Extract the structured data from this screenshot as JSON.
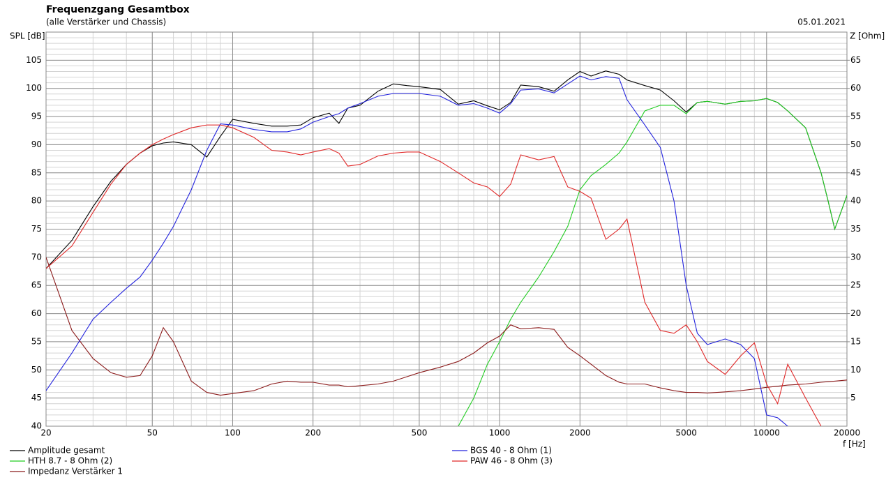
{
  "chart_data": {
    "type": "line",
    "title": "Frequenzgang Gesamtbox",
    "subtitle": "(alle Verstärker und Chassis)",
    "date": "05.01.2021",
    "ylabel": "SPL [dB]",
    "y2label": "Z [Ohm]",
    "xlabel": "f [Hz]",
    "xscale": "log",
    "grid": true,
    "minor_grid": true,
    "xlim": [
      20,
      20000
    ],
    "xticks": [
      20,
      50,
      100,
      200,
      500,
      1000,
      2000,
      5000,
      10000,
      20000
    ],
    "ylim": [
      40,
      110
    ],
    "yticks": [
      40,
      45,
      50,
      55,
      60,
      65,
      70,
      75,
      80,
      85,
      90,
      95,
      100,
      105
    ],
    "y2lim": [
      0,
      70
    ],
    "y2ticks": [
      5,
      10,
      15,
      20,
      25,
      30,
      35,
      40,
      45,
      50,
      55,
      60,
      65
    ],
    "x": [
      20,
      25,
      30,
      35,
      40,
      45,
      50,
      55,
      60,
      70,
      80,
      90,
      100,
      120,
      140,
      160,
      180,
      200,
      230,
      250,
      270,
      300,
      350,
      400,
      450,
      500,
      600,
      700,
      800,
      900,
      1000,
      1100,
      1200,
      1400,
      1600,
      1800,
      2000,
      2200,
      2500,
      2800,
      3000,
      3500,
      4000,
      4500,
      5000,
      5500,
      6000,
      7000,
      8000,
      9000,
      10000,
      11000,
      12000,
      14000,
      16000,
      17000,
      18000,
      20000
    ],
    "series": [
      {
        "name": "Amplitude gesamt",
        "color": "#000000",
        "values": [
          68,
          73,
          79,
          83.5,
          86.5,
          88.5,
          89.8,
          90.3,
          90.5,
          90,
          87.8,
          91.5,
          94.5,
          93.8,
          93.3,
          93.3,
          93.5,
          94.8,
          95.6,
          93.8,
          96.5,
          97,
          99.5,
          100.8,
          100.5,
          100.3,
          99.8,
          97.2,
          97.8,
          96.9,
          96.2,
          97.5,
          100.6,
          100.3,
          99.5,
          101.5,
          103,
          102.2,
          103.1,
          102.5,
          101.5,
          100.5,
          99.7,
          97.8,
          95.8,
          97.5,
          97.7,
          97.2,
          97.7,
          97.8,
          98.2,
          97.5,
          96,
          93,
          85,
          80,
          75,
          81
        ]
      },
      {
        "name": "HTH 8.7 - 8 Ohm (2)",
        "color": "#22cc22",
        "values": [
          null,
          null,
          null,
          null,
          null,
          null,
          null,
          null,
          null,
          null,
          null,
          null,
          null,
          null,
          null,
          null,
          null,
          null,
          null,
          null,
          null,
          null,
          null,
          null,
          null,
          null,
          null,
          40,
          45,
          51,
          55,
          59,
          62,
          66.5,
          71,
          75.5,
          82,
          84.5,
          86.5,
          88.5,
          90.5,
          96,
          97,
          97,
          95.5,
          97.5,
          97.7,
          97.2,
          97.7,
          97.8,
          98.2,
          97.5,
          96,
          93,
          85,
          80,
          75,
          81
        ]
      },
      {
        "name": "Impedanz Verstärker 1",
        "color": "#8b1a1a",
        "axis": "y2",
        "values": [
          30,
          17,
          12,
          9.5,
          8.7,
          9,
          12.5,
          17.5,
          15,
          8,
          6,
          5.5,
          5.8,
          6.3,
          7.5,
          8,
          7.8,
          7.8,
          7.3,
          7.3,
          7,
          7.2,
          7.5,
          8,
          8.8,
          9.5,
          10.5,
          11.5,
          13,
          14.8,
          16,
          18,
          17.3,
          17.5,
          17.2,
          14,
          12.5,
          11,
          9,
          7.8,
          7.5,
          7.5,
          6.8,
          6.3,
          6,
          6,
          5.9,
          6.1,
          6.3,
          6.6,
          6.9,
          7.1,
          7.3,
          7.5,
          7.8,
          7.9,
          8,
          8.2
        ]
      },
      {
        "name": "BGS 40 - 8 Ohm (1)",
        "color": "#2222dd",
        "values": [
          46.3,
          53,
          59,
          62,
          64.5,
          66.5,
          69.5,
          72.5,
          75.5,
          82,
          89,
          93.7,
          93.5,
          92.7,
          92.3,
          92.3,
          92.8,
          94,
          95,
          95.5,
          96.5,
          97.3,
          98.6,
          99.1,
          99.1,
          99.1,
          98.6,
          97,
          97.3,
          96.5,
          95.6,
          97.3,
          99.7,
          99.9,
          99.2,
          100.8,
          102.2,
          101.5,
          102.1,
          101.8,
          98,
          93.5,
          89.5,
          80,
          65,
          56.5,
          54.5,
          55.5,
          54.5,
          52,
          42,
          41.5,
          40,
          null,
          null,
          null,
          null,
          null
        ]
      },
      {
        "name": "PAW 46 - 8 Ohm (3)",
        "color": "#e02828",
        "values": [
          68,
          72,
          78,
          83,
          86.5,
          88.5,
          90,
          91,
          91.8,
          93,
          93.5,
          93.5,
          93,
          91.3,
          89,
          88.7,
          88.2,
          88.7,
          89.3,
          88.5,
          86.2,
          86.5,
          88,
          88.5,
          88.7,
          88.7,
          87,
          85,
          83.2,
          82.5,
          80.8,
          83,
          88.2,
          87.3,
          87.9,
          82.5,
          81.7,
          80.5,
          73.2,
          75,
          76.8,
          62,
          57,
          56.5,
          58,
          55,
          51.5,
          49.2,
          52.5,
          54.8,
          47.5,
          44,
          51,
          45,
          40,
          null,
          null,
          null
        ]
      }
    ]
  }
}
